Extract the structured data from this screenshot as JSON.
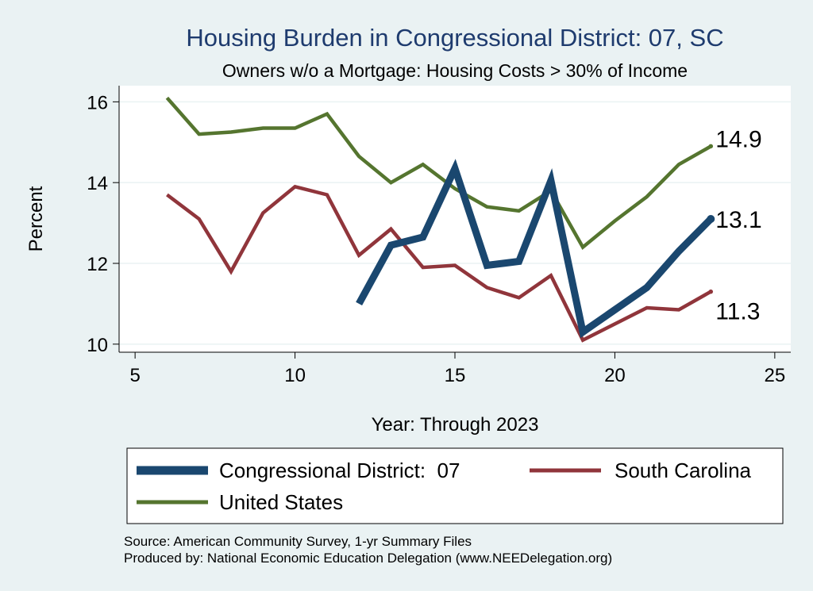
{
  "chart_data": {
    "type": "line",
    "title": "Housing Burden in Congressional District:  07, SC",
    "subtitle": "Owners w/o a Mortgage: Housing Costs > 30% of Income",
    "xlabel": "Year: Through 2023",
    "ylabel": "Percent",
    "xlim": [
      4.5,
      25.5
    ],
    "ylim": [
      9.8,
      16.4
    ],
    "xticks": [
      5,
      10,
      15,
      20,
      25
    ],
    "yticks": [
      10,
      12,
      14,
      16
    ],
    "grid": true,
    "legend_position": "bottom",
    "series": [
      {
        "name": "Congressional District:  07",
        "color": "#1a476f",
        "line": "thick",
        "x": [
          12,
          13,
          14,
          15,
          16,
          17,
          18,
          19,
          20,
          21,
          22,
          23
        ],
        "values": [
          11.0,
          12.45,
          12.65,
          14.35,
          11.95,
          12.05,
          14.05,
          10.3,
          10.85,
          11.4,
          12.3,
          13.1
        ],
        "end_label": "13.1"
      },
      {
        "name": "South Carolina",
        "color": "#90353b",
        "line": "medium",
        "x": [
          6,
          7,
          8,
          9,
          10,
          11,
          12,
          13,
          14,
          15,
          16,
          17,
          18,
          19,
          20,
          21,
          22,
          23
        ],
        "values": [
          13.7,
          13.1,
          11.8,
          13.25,
          13.9,
          13.7,
          12.2,
          12.85,
          11.9,
          11.95,
          11.4,
          11.15,
          11.7,
          10.1,
          10.5,
          10.9,
          10.85,
          11.3
        ],
        "end_label": "11.3"
      },
      {
        "name": "United States",
        "color": "#55752f",
        "line": "medium",
        "x": [
          6,
          7,
          8,
          9,
          10,
          11,
          12,
          13,
          14,
          15,
          16,
          17,
          18,
          19,
          20,
          21,
          22,
          23
        ],
        "values": [
          16.1,
          15.2,
          15.25,
          15.35,
          15.35,
          15.7,
          14.65,
          14.0,
          14.45,
          13.85,
          13.4,
          13.3,
          13.8,
          12.4,
          13.05,
          13.65,
          14.45,
          14.9
        ],
        "end_label": "14.9"
      }
    ]
  },
  "footer": {
    "source": "Source: American Community Survey, 1-yr Summary Files",
    "produced": "Produced by: National Economic Education Delegation (www.NEEDelegation.org)"
  }
}
